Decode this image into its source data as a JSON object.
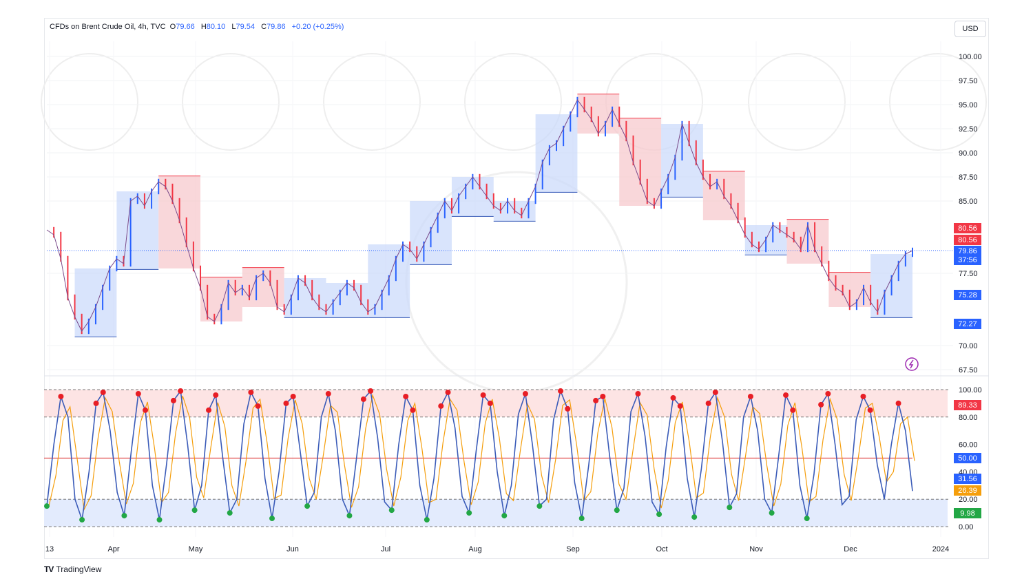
{
  "header": {
    "symbol": "CFDs on Brent Crude Oil, 4h, TVC",
    "open_label": "O",
    "open": "79.66",
    "high_label": "H",
    "high": "80.10",
    "low_label": "L",
    "low": "79.54",
    "close_label": "C",
    "close": "79.86",
    "change": "+0.20 (+0.25%)"
  },
  "currency": "USD",
  "brand": "TradingView",
  "colors": {
    "up": "#2962ff",
    "down": "#f23645",
    "resistance_fill": "#f7c6ca",
    "support_fill": "#c9d8fb",
    "osc_line": "#3a5bb8",
    "signal_line": "#f59e0b",
    "overbought_zone": "#fde4e4",
    "oversold_zone": "#e3ebfd",
    "buy_dot": "#22a745",
    "sell_dot": "#e81e25"
  },
  "chart_data": [
    {
      "type": "line",
      "name": "price",
      "x_ticks": [
        "13",
        "Apr",
        "May",
        "Jun",
        "Jul",
        "Aug",
        "Sep",
        "Oct",
        "Nov",
        "Dec",
        "2024"
      ],
      "y_ticks": [
        "100.00",
        "97.50",
        "95.00",
        "92.50",
        "90.00",
        "87.50",
        "85.00",
        "77.50",
        "70.00",
        "67.50"
      ],
      "ylim": [
        67.5,
        100
      ],
      "price_close_approx": [
        82.0,
        81.5,
        79.0,
        75.0,
        73.0,
        71.5,
        72.5,
        74.0,
        76.0,
        78.0,
        79.0,
        78.5,
        85.0,
        85.5,
        84.5,
        86.0,
        87.0,
        86.5,
        85.0,
        83.0,
        80.5,
        78.0,
        76.0,
        73.0,
        72.5,
        74.0,
        76.5,
        75.5,
        76.0,
        75.0,
        77.0,
        77.5,
        76.5,
        74.0,
        73.5,
        75.0,
        77.0,
        76.5,
        75.0,
        74.0,
        73.5,
        74.5,
        75.5,
        76.5,
        76.0,
        74.5,
        73.5,
        74.0,
        75.5,
        77.0,
        79.0,
        80.5,
        80.0,
        79.0,
        80.5,
        82.0,
        83.5,
        85.0,
        84.0,
        85.5,
        86.5,
        87.5,
        86.5,
        85.5,
        84.5,
        84.0,
        85.0,
        84.0,
        83.5,
        85.0,
        86.5,
        89.0,
        90.5,
        91.0,
        92.5,
        94.0,
        95.5,
        94.5,
        93.5,
        92.0,
        93.0,
        94.5,
        93.0,
        91.5,
        89.0,
        87.0,
        85.0,
        84.5,
        86.0,
        87.5,
        89.5,
        93.0,
        91.0,
        89.0,
        87.5,
        86.5,
        87.0,
        85.5,
        84.5,
        83.0,
        81.5,
        80.5,
        80.0,
        81.0,
        82.5,
        82.0,
        81.5,
        81.0,
        80.0,
        82.5,
        80.0,
        78.5,
        77.0,
        76.0,
        75.5,
        74.0,
        74.5,
        76.0,
        74.5,
        73.5,
        75.5,
        77.0,
        78.5,
        79.5,
        79.86
      ],
      "levels": [
        {
          "label": "80.56",
          "value": 80.56,
          "color": "#f23645"
        },
        {
          "label": "80.56",
          "value": 80.56,
          "color": "#f23645"
        },
        {
          "label": "79.86",
          "value": 79.86,
          "color": "#2962ff"
        },
        {
          "label": "37:56",
          "value": 79.86,
          "color": "#2962ff"
        },
        {
          "label": "75.28",
          "value": 75.28,
          "color": "#2962ff"
        },
        {
          "label": "72.27",
          "value": 72.27,
          "color": "#2962ff"
        }
      ]
    },
    {
      "type": "line",
      "name": "oscillator",
      "y_ticks": [
        "100.00",
        "80.00",
        "60.00",
        "40.00",
        "20.00",
        "0.00"
      ],
      "ylim": [
        0,
        100
      ],
      "bands": [
        20,
        50,
        80
      ],
      "values_approx": [
        15,
        60,
        95,
        80,
        20,
        5,
        40,
        90,
        98,
        70,
        25,
        8,
        55,
        97,
        85,
        30,
        5,
        45,
        92,
        99,
        60,
        12,
        30,
        85,
        96,
        50,
        10,
        20,
        75,
        98,
        88,
        35,
        6,
        40,
        90,
        95,
        55,
        15,
        25,
        80,
        97,
        70,
        20,
        8,
        50,
        93,
        99,
        65,
        18,
        12,
        60,
        95,
        85,
        30,
        5,
        35,
        88,
        98,
        72,
        22,
        10,
        55,
        96,
        90,
        40,
        8,
        30,
        82,
        97,
        60,
        15,
        20,
        78,
        99,
        86,
        32,
        6,
        45,
        92,
        95,
        50,
        12,
        28,
        84,
        97,
        66,
        18,
        9,
        58,
        94,
        88,
        35,
        7,
        42,
        90,
        98,
        62,
        14,
        24,
        80,
        95,
        70,
        20,
        10,
        52,
        96,
        85,
        30,
        6,
        38,
        89,
        97,
        60,
        16,
        22,
        78,
        95,
        85,
        45,
        20,
        60,
        90,
        70,
        26
      ],
      "levels": [
        {
          "label": "89.33",
          "value": 89.33,
          "color": "#f23645"
        },
        {
          "label": "50.00",
          "value": 50,
          "color": "#2962ff"
        },
        {
          "label": "31.56",
          "value": 31.56,
          "color": "#2962ff"
        },
        {
          "label": "26.39",
          "value": 26.39,
          "color": "#f59e0b"
        },
        {
          "label": "9.98",
          "value": 9.98,
          "color": "#22a745"
        }
      ]
    }
  ]
}
